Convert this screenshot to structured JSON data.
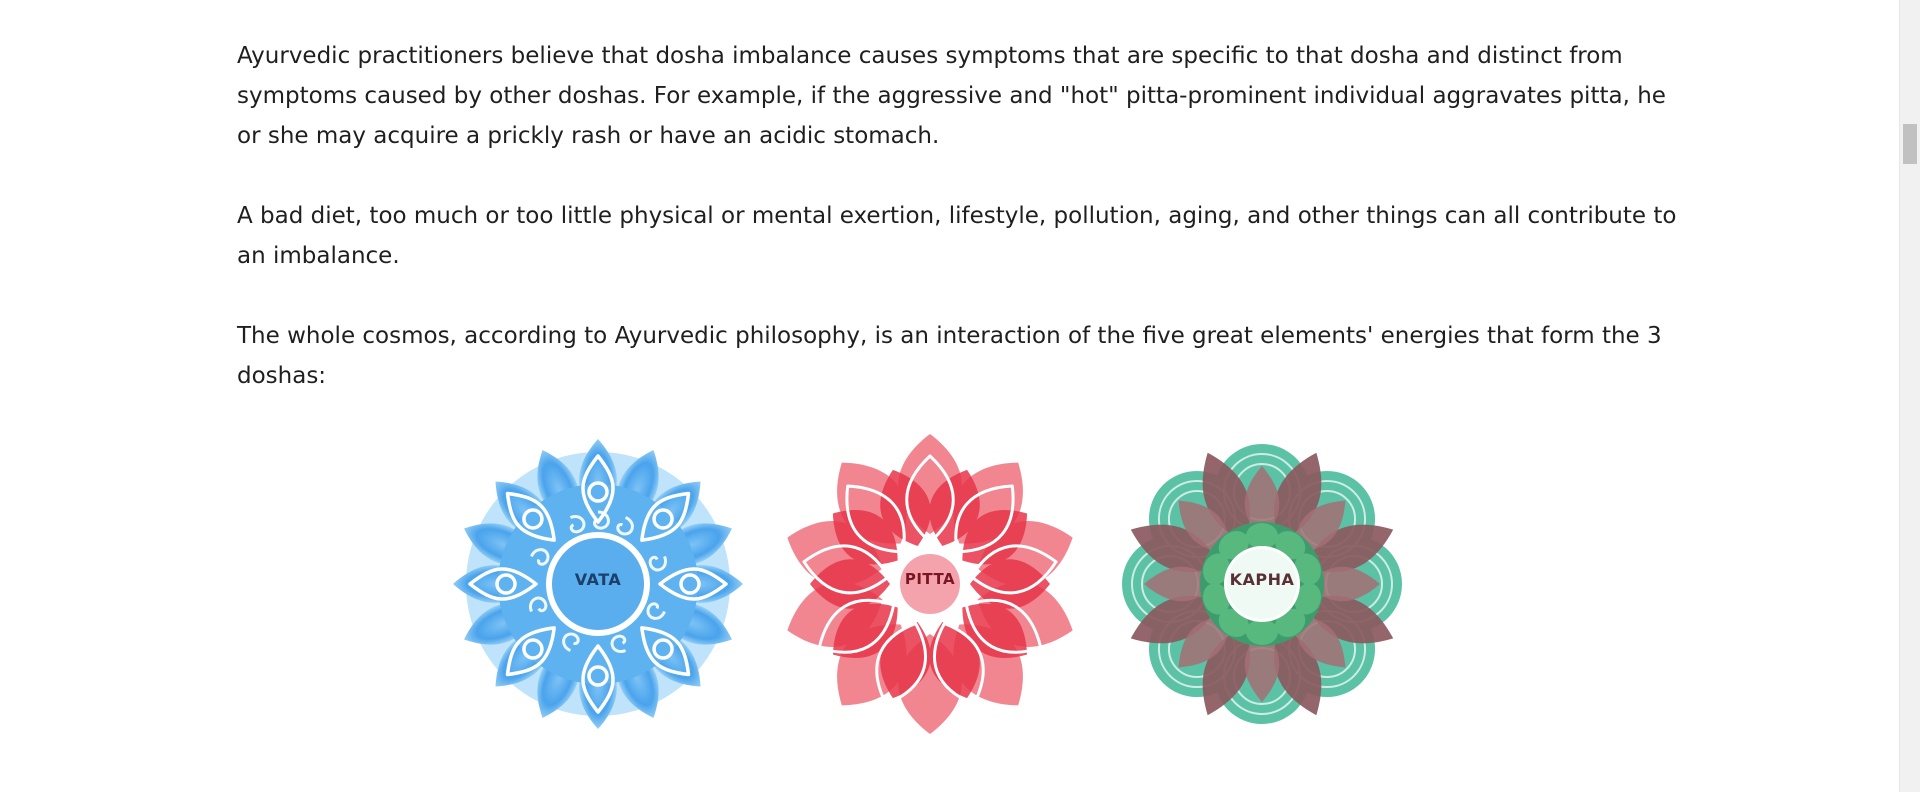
{
  "article": {
    "paragraphs": [
      "Ayurvedic practitioners believe that dosha imbalance causes symptoms that are specific to that dosha and distinct from symptoms caused by other doshas. For example, if the aggressive and \"hot\" pitta-prominent individual aggravates pitta, he or she may acquire a prickly rash or have an acidic stomach.",
      "A bad diet, too much or too little physical or mental exertion, lifestyle, pollution, aging, and other things can all contribute to an imbalance.",
      "The whole cosmos, according to Ayurvedic philosophy, is an interaction of the five great elements' energies that form the 3 doshas:"
    ]
  },
  "doshas": [
    {
      "label": "VATA",
      "color": "#2f8fe6",
      "label_color": "#1c3f6b"
    },
    {
      "label": "PITTA",
      "color": "#e8364a",
      "label_color": "#7a1522"
    },
    {
      "label": "KAPHA",
      "color": "#2ea37f",
      "label_color": "#5a3037"
    }
  ]
}
